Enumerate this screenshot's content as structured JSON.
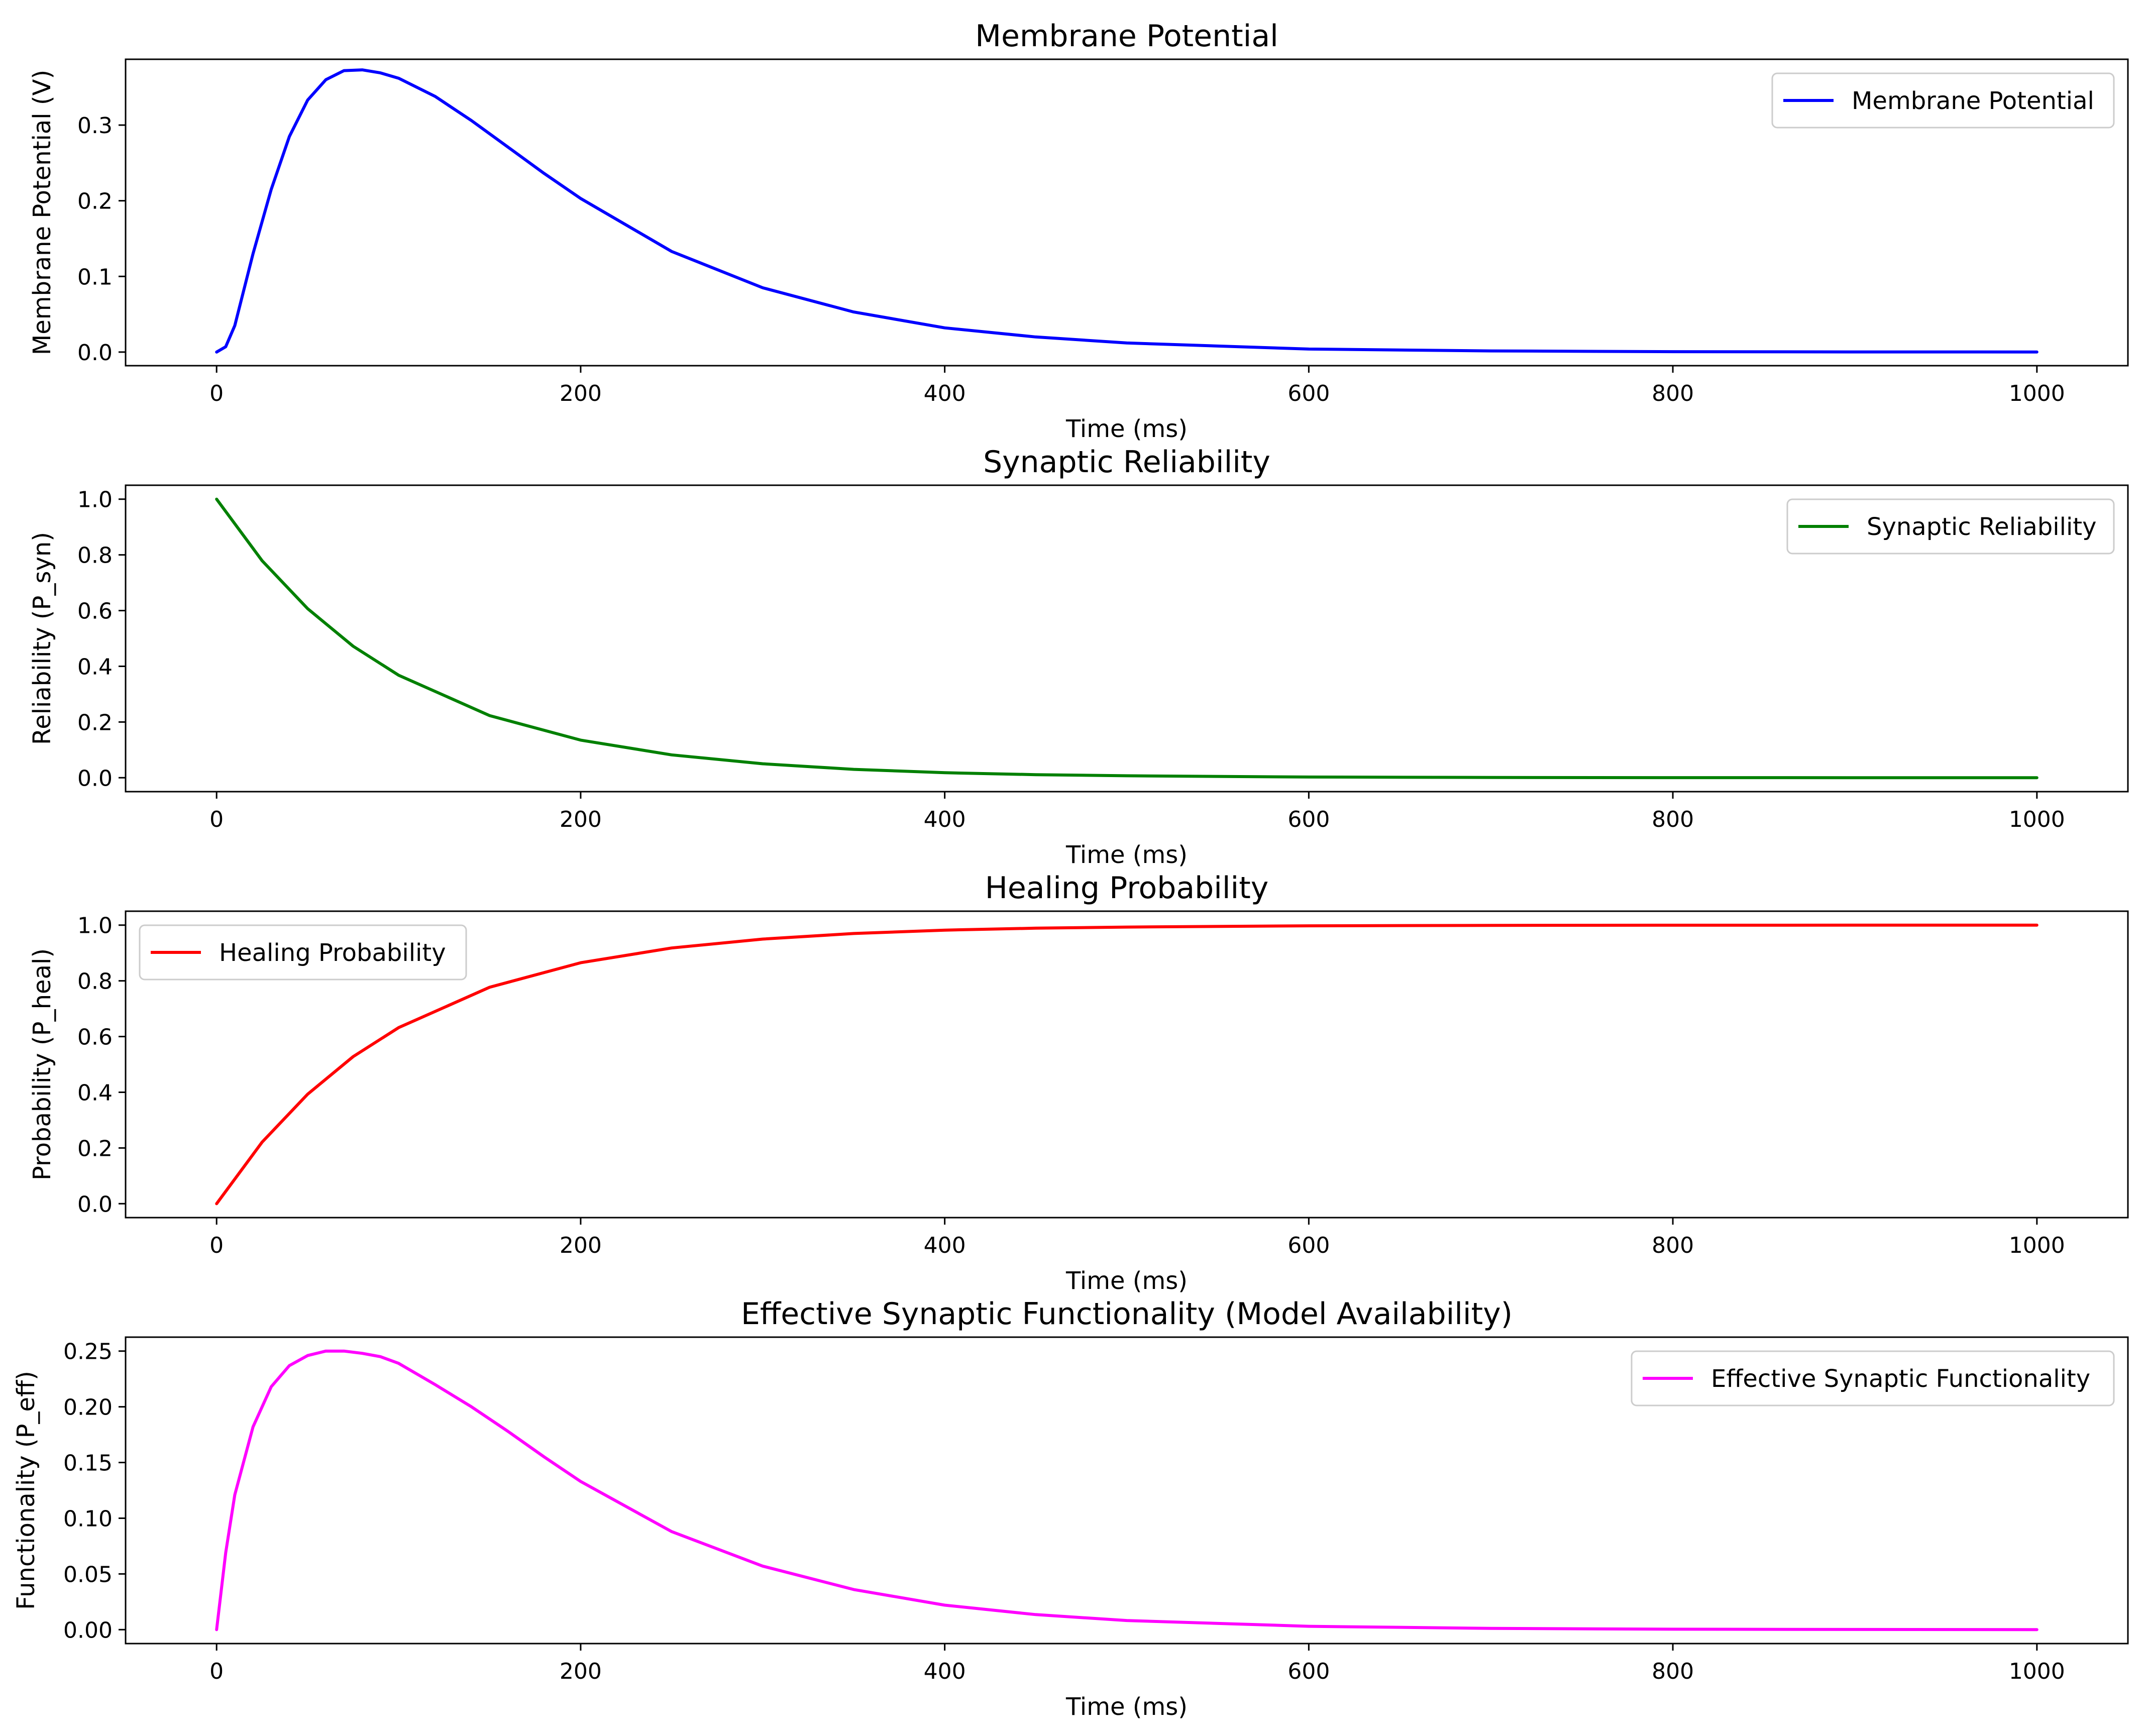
{
  "chart_data": [
    {
      "type": "line",
      "title": "Membrane Potential",
      "xlabel": "Time (ms)",
      "ylabel": "Membrane Potential (V)",
      "xlim": [
        -50,
        1050
      ],
      "ylim": [
        -0.018,
        0.387
      ],
      "xticks": [
        0,
        200,
        400,
        600,
        800,
        1000
      ],
      "xtick_labels": [
        "0",
        "200",
        "400",
        "600",
        "800",
        "1000"
      ],
      "yticks": [
        0.0,
        0.1,
        0.2,
        0.3
      ],
      "ytick_labels": [
        "0.0",
        "0.1",
        "0.2",
        "0.3"
      ],
      "legend_position": "top-right",
      "series": [
        {
          "name": "Membrane Potential",
          "color": "#0000ff",
          "x": [
            0,
            5,
            10,
            20,
            30,
            40,
            50,
            60,
            70,
            80,
            90,
            100,
            120,
            140,
            160,
            180,
            200,
            250,
            300,
            350,
            400,
            450,
            500,
            600,
            700,
            800,
            900,
            1000
          ],
          "y": [
            0.0,
            0.007,
            0.035,
            0.13,
            0.215,
            0.285,
            0.333,
            0.36,
            0.372,
            0.373,
            0.369,
            0.362,
            0.338,
            0.306,
            0.271,
            0.236,
            0.203,
            0.133,
            0.085,
            0.053,
            0.032,
            0.02,
            0.012,
            0.004,
            0.0015,
            0.0005,
            0.0002,
            0.0001
          ]
        }
      ]
    },
    {
      "type": "line",
      "title": "Synaptic Reliability",
      "xlabel": "Time (ms)",
      "ylabel": "Reliability (P_syn)",
      "xlim": [
        -50,
        1050
      ],
      "ylim": [
        -0.05,
        1.05
      ],
      "xticks": [
        0,
        200,
        400,
        600,
        800,
        1000
      ],
      "xtick_labels": [
        "0",
        "200",
        "400",
        "600",
        "800",
        "1000"
      ],
      "yticks": [
        0.0,
        0.2,
        0.4,
        0.6,
        0.8,
        1.0
      ],
      "ytick_labels": [
        "0.0",
        "0.2",
        "0.4",
        "0.6",
        "0.8",
        "1.0"
      ],
      "legend_position": "top-right",
      "series": [
        {
          "name": "Synaptic Reliability",
          "color": "#008000",
          "x": [
            0,
            25,
            50,
            75,
            100,
            150,
            200,
            250,
            300,
            350,
            400,
            450,
            500,
            600,
            700,
            800,
            900,
            1000
          ],
          "y": [
            1.0,
            0.779,
            0.607,
            0.472,
            0.368,
            0.223,
            0.135,
            0.082,
            0.05,
            0.03,
            0.018,
            0.011,
            0.007,
            0.0025,
            0.0009,
            0.0003,
            0.0001,
            0.0
          ]
        }
      ]
    },
    {
      "type": "line",
      "title": "Healing Probability",
      "xlabel": "Time (ms)",
      "ylabel": "Probability (P_heal)",
      "xlim": [
        -50,
        1050
      ],
      "ylim": [
        -0.05,
        1.05
      ],
      "xticks": [
        0,
        200,
        400,
        600,
        800,
        1000
      ],
      "xtick_labels": [
        "0",
        "200",
        "400",
        "600",
        "800",
        "1000"
      ],
      "yticks": [
        0.0,
        0.2,
        0.4,
        0.6,
        0.8,
        1.0
      ],
      "ytick_labels": [
        "0.0",
        "0.2",
        "0.4",
        "0.6",
        "0.8",
        "1.0"
      ],
      "legend_position": "top-left",
      "series": [
        {
          "name": "Healing Probability",
          "color": "#ff0000",
          "x": [
            0,
            25,
            50,
            75,
            100,
            150,
            200,
            250,
            300,
            350,
            400,
            450,
            500,
            600,
            700,
            800,
            900,
            1000
          ],
          "y": [
            0.0,
            0.221,
            0.393,
            0.528,
            0.632,
            0.777,
            0.865,
            0.918,
            0.95,
            0.97,
            0.982,
            0.989,
            0.993,
            0.9975,
            0.9991,
            0.9997,
            0.9999,
            1.0
          ]
        }
      ]
    },
    {
      "type": "line",
      "title": "Effective Synaptic Functionality (Model Availability)",
      "xlabel": "Time (ms)",
      "ylabel": "Functionality (P_eff)",
      "xlim": [
        -50,
        1050
      ],
      "ylim": [
        -0.0125,
        0.2625
      ],
      "xticks": [
        0,
        200,
        400,
        600,
        800,
        1000
      ],
      "xtick_labels": [
        "0",
        "200",
        "400",
        "600",
        "800",
        "1000"
      ],
      "yticks": [
        0.0,
        0.05,
        0.1,
        0.15,
        0.2,
        0.25
      ],
      "ytick_labels": [
        "0.00",
        "0.05",
        "0.10",
        "0.15",
        "0.20",
        "0.25"
      ],
      "legend_position": "top-right",
      "series": [
        {
          "name": "Effective Synaptic Functionality",
          "color": "#ff00ff",
          "x": [
            0,
            5,
            10,
            20,
            30,
            40,
            50,
            60,
            70,
            80,
            90,
            100,
            120,
            140,
            160,
            180,
            200,
            250,
            300,
            350,
            400,
            450,
            500,
            600,
            700,
            800,
            900,
            1000
          ],
          "y": [
            0.0,
            0.069,
            0.121,
            0.182,
            0.218,
            0.237,
            0.246,
            0.25,
            0.25,
            0.248,
            0.245,
            0.239,
            0.22,
            0.2,
            0.178,
            0.155,
            0.133,
            0.088,
            0.057,
            0.036,
            0.022,
            0.0135,
            0.0082,
            0.003,
            0.0011,
            0.0004,
            0.00015,
            5e-05
          ]
        }
      ]
    }
  ]
}
